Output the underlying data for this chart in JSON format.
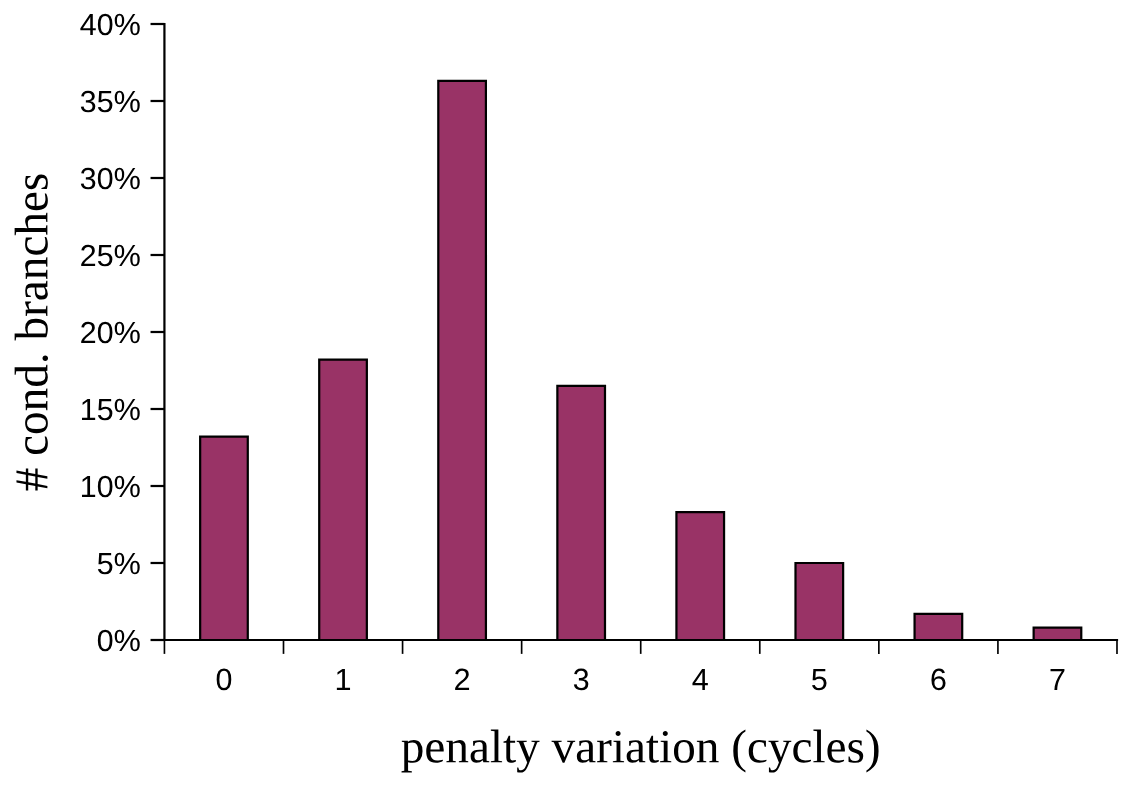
{
  "chart_data": {
    "type": "bar",
    "xlabel": "penalty variation (cycles)",
    "ylabel": "# cond. branches",
    "categories": [
      "0",
      "1",
      "2",
      "3",
      "4",
      "5",
      "6",
      "7"
    ],
    "values": [
      13.2,
      18.2,
      36.3,
      16.5,
      8.3,
      5.0,
      1.7,
      0.8
    ],
    "color": "#993366",
    "ylim": [
      0,
      40
    ],
    "yticks": [
      {
        "value": 0,
        "label": "0%"
      },
      {
        "value": 5,
        "label": "5%"
      },
      {
        "value": 10,
        "label": "10%"
      },
      {
        "value": 15,
        "label": "15%"
      },
      {
        "value": 20,
        "label": "20%"
      },
      {
        "value": 25,
        "label": "25%"
      },
      {
        "value": 30,
        "label": "30%"
      },
      {
        "value": 35,
        "label": "35%"
      },
      {
        "value": 40,
        "label": "40%"
      }
    ],
    "grid": false,
    "legend": false
  }
}
